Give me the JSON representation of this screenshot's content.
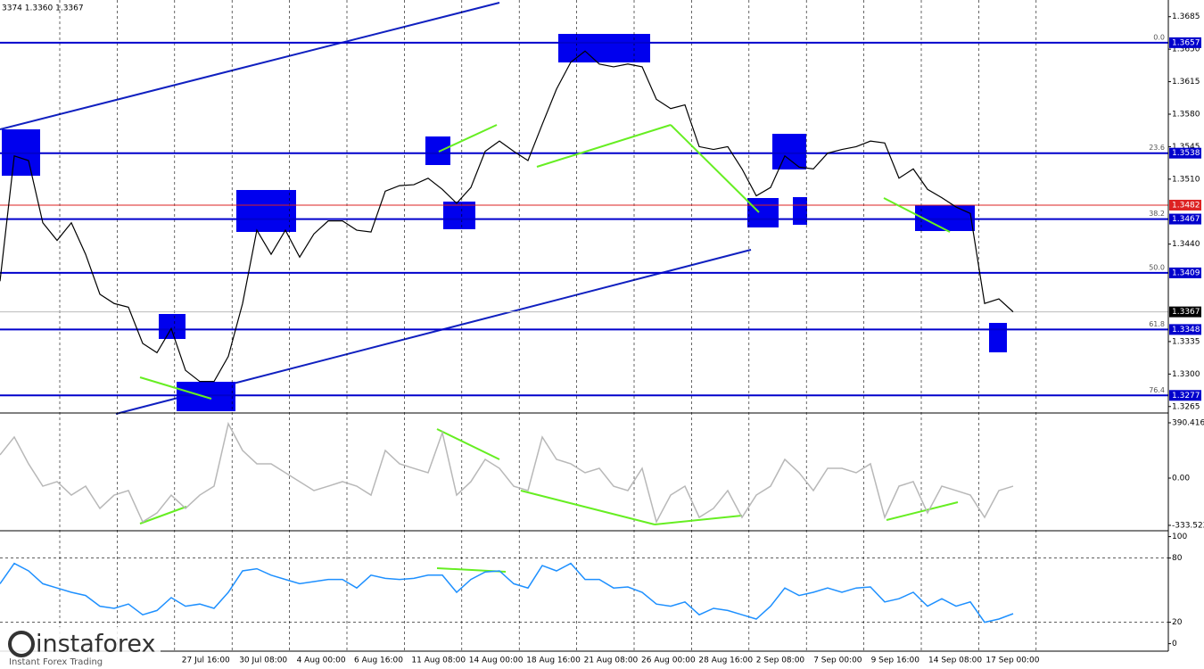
{
  "chart_data": [
    {
      "type": "line",
      "title": "3374 1.3360 1.3367",
      "ylim": [
        1.3259,
        1.3703
      ],
      "yticks": [
        1.3685,
        {
          "value": 1.365,
          "label": "1.3650"
        },
        1.3615,
        {
          "value": 1.358,
          "label": "1.3580"
        },
        1.3545,
        {
          "value": 1.351,
          "label": "1.3510"
        },
        {
          "value": 1.344,
          "label": "1.3440"
        },
        1.3335,
        {
          "value": 1.33,
          "label": "1.3300"
        },
        1.3265
      ],
      "xlabels": [
        "27 Jul 16:00",
        "30 Jul 08:00",
        "4 Aug 00:00",
        "6 Aug 16:00",
        "11 Aug 08:00",
        "14 Aug 00:00",
        "18 Aug 16:00",
        "21 Aug 08:00",
        "26 Aug 00:00",
        "28 Aug 16:00",
        "2 Sep 08:00",
        "7 Sep 00:00",
        "9 Sep 16:00",
        "14 Sep 08:00",
        "17 Sep 00:00"
      ],
      "levels": [
        {
          "price": 1.3657,
          "fib": "0.0"
        },
        {
          "price": 1.3538,
          "fib": "23.6"
        },
        {
          "price": 1.3467,
          "fib": "38.2"
        },
        {
          "price": 1.3409,
          "fib": "50.0"
        },
        {
          "price": 1.3348,
          "fib": "61.8"
        },
        {
          "price": 1.3277,
          "fib": "76.4"
        }
      ],
      "level_color": "#0000cc",
      "marker_line": 1.3482,
      "marker_color": "#dd2222",
      "last_price": 1.3367,
      "series": [
        {
          "color": "#000000",
          "values": [
            1.34,
            1.3535,
            1.353,
            1.3463,
            1.3444,
            1.3463,
            1.3429,
            1.3386,
            1.3376,
            1.3372,
            1.3333,
            1.3323,
            1.3349,
            1.3304,
            1.3292,
            1.3292,
            1.3319,
            1.3376,
            1.3455,
            1.3429,
            1.3455,
            1.3426,
            1.3451,
            1.3465,
            1.3465,
            1.3455,
            1.3453,
            1.3497,
            1.3503,
            1.3504,
            1.3511,
            1.3499,
            1.3484,
            1.3501,
            1.354,
            1.3551,
            1.354,
            1.353,
            1.3569,
            1.3607,
            1.3636,
            1.3648,
            1.3634,
            1.3631,
            1.3634,
            1.3631,
            1.3596,
            1.3586,
            1.359,
            1.3545,
            1.3542,
            1.3545,
            1.3521,
            1.3492,
            1.3501,
            1.3535,
            1.3523,
            1.3521,
            1.3538,
            1.3542,
            1.3545,
            1.3551,
            1.3549,
            1.3511,
            1.3521,
            1.3499,
            1.349,
            1.348,
            1.3473,
            1.3376,
            1.3381,
            1.3367
          ]
        }
      ]
    },
    {
      "type": "line",
      "ylim": [
        -359,
        447
      ],
      "yticks": [
        390.4163,
        {
          "value": 0,
          "label": "0.00"
        },
        -333.522
      ],
      "series": [
        {
          "color": "#b8b8b8",
          "values": [
            164,
            290,
            101,
            -57,
            -25,
            -120,
            -57,
            -214,
            -120,
            -88,
            -309,
            -246,
            -120,
            -214,
            -120,
            -57,
            384,
            195,
            101,
            101,
            38,
            -25,
            -88,
            -57,
            -25,
            -57,
            -120,
            195,
            101,
            69,
            38,
            321,
            -120,
            -25,
            132,
            69,
            -57,
            -88,
            290,
            132,
            101,
            38,
            69,
            -57,
            -88,
            69,
            -309,
            -120,
            -57,
            -277,
            -214,
            -88,
            -277,
            -120,
            -57,
            132,
            38,
            -88,
            69,
            69,
            38,
            101,
            -277,
            -57,
            -25,
            -246,
            -57,
            -88,
            -120,
            -277,
            -88,
            -57
          ]
        }
      ]
    },
    {
      "type": "line",
      "ylim": [
        -7,
        103
      ],
      "yticks": [
        100,
        80,
        20,
        0
      ],
      "levels": [
        80,
        20
      ],
      "series": [
        {
          "color": "#1e90ff",
          "values": [
            56,
            75,
            68,
            56,
            52,
            48,
            45,
            35,
            33,
            37,
            27,
            31,
            43,
            35,
            37,
            33,
            48,
            68,
            70,
            64,
            60,
            56,
            58,
            60,
            60,
            52,
            64,
            61,
            60,
            61,
            64,
            64,
            48,
            60,
            67,
            68,
            56,
            52,
            73,
            68,
            75,
            60,
            60,
            52,
            53,
            48,
            37,
            35,
            39,
            27,
            33,
            31,
            27,
            23,
            35,
            52,
            45,
            48,
            52,
            48,
            52,
            53,
            39,
            42,
            48,
            35,
            42,
            35,
            39,
            20,
            23,
            28
          ]
        }
      ]
    }
  ],
  "watermark": {
    "name": "instaforex",
    "tagline": "Instant Forex Trading"
  }
}
